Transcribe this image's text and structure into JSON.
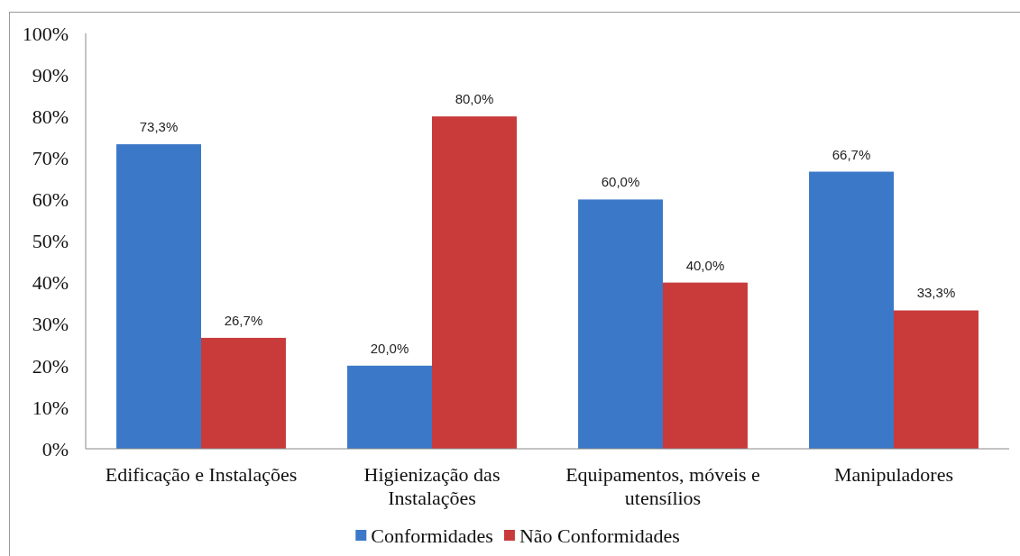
{
  "chart_data": {
    "type": "bar",
    "categories": [
      "Edificação e Instalações",
      "Higienização das Instalações",
      "Equipamentos, móveis e utensílios",
      "Manipuladores"
    ],
    "series": [
      {
        "name": "Conformidades",
        "color": "#3b78c8",
        "values": [
          73.3,
          20.0,
          60.0,
          66.7
        ],
        "value_labels": [
          "73,3%",
          "20,0%",
          "60,0%",
          "66,7%"
        ]
      },
      {
        "name": "Não Conformidades",
        "color": "#c93a3a",
        "values": [
          26.7,
          80.0,
          40.0,
          33.3
        ],
        "value_labels": [
          "26,7%",
          "80,0%",
          "40,0%",
          "33,3%"
        ]
      }
    ],
    "ylim": [
      0,
      100
    ],
    "yticks": [
      {
        "value": 0,
        "label": "0%"
      },
      {
        "value": 10,
        "label": "10%"
      },
      {
        "value": 20,
        "label": "20%"
      },
      {
        "value": 30,
        "label": "30%"
      },
      {
        "value": 40,
        "label": "40%"
      },
      {
        "value": 50,
        "label": "50%"
      },
      {
        "value": 60,
        "label": "60%"
      },
      {
        "value": 70,
        "label": "70%"
      },
      {
        "value": 80,
        "label": "80%"
      },
      {
        "value": 90,
        "label": "90%"
      },
      {
        "value": 100,
        "label": "100%"
      }
    ],
    "legend": "bottom"
  }
}
